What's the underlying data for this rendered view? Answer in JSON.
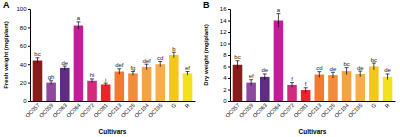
{
  "chart_data": [
    {
      "type": "bar",
      "title": "A",
      "x_label": "Cultivars",
      "y_label": "Fresh weight (mg/plant)",
      "categories": [
        "OC057",
        "OC059",
        "OC063",
        "OC064",
        "OC072",
        "OC081",
        "OC113",
        "OC125",
        "OC194",
        "OC195",
        "G",
        "R"
      ],
      "values": [
        44,
        20,
        36,
        82,
        22,
        18,
        32,
        30,
        37,
        40,
        50,
        30
      ],
      "errors": [
        3,
        2,
        2,
        4,
        2,
        1.5,
        3,
        2,
        3,
        3,
        3,
        2
      ],
      "annotations": [
        "bc",
        "gh",
        "de",
        "a",
        "hi",
        "i",
        "def",
        "fg",
        "def",
        "cd",
        "b",
        "ef"
      ],
      "colors": [
        "#8b1a1a",
        "#8e4a9e",
        "#5e2d82",
        "#c21e9a",
        "#d42a7e",
        "#e8262a",
        "#f07a32",
        "#f08c3c",
        "#f3a244",
        "#f5b04a",
        "#f2c81e",
        "#f2e21c"
      ],
      "ylim": [
        0,
        100
      ],
      "yticks": [
        0,
        20,
        40,
        60,
        80,
        100
      ]
    },
    {
      "type": "bar",
      "title": "B",
      "x_label": "Cultivars",
      "y_label": "Dry weight (mg/plant)",
      "categories": [
        "OC057",
        "OC059",
        "OC063",
        "OC064",
        "OC072",
        "OC081",
        "OC113",
        "OC125",
        "OC194",
        "OC195",
        "G",
        "R"
      ],
      "values": [
        6.3,
        3.2,
        4.2,
        14,
        2.8,
        1.9,
        4.6,
        4.5,
        5.2,
        4.7,
        6,
        4.2
      ],
      "errors": [
        0.7,
        0.5,
        0.5,
        1.2,
        0.4,
        0.4,
        0.5,
        0.5,
        0.6,
        0.5,
        0.6,
        0.5
      ],
      "annotations": [
        "bc",
        "ef",
        "de",
        "a",
        "f",
        "f",
        "cd",
        "de",
        "bc",
        "de",
        "bc",
        "de"
      ],
      "colors": [
        "#8b1a1a",
        "#8e4a9e",
        "#5e2d82",
        "#c21e9a",
        "#d42a7e",
        "#e8262a",
        "#f07a32",
        "#f08c3c",
        "#f3a244",
        "#f5b04a",
        "#f2c81e",
        "#f2e21c"
      ],
      "ylim": [
        0,
        16
      ],
      "yticks": [
        0,
        2,
        4,
        6,
        8,
        10,
        12,
        14,
        16
      ]
    }
  ]
}
